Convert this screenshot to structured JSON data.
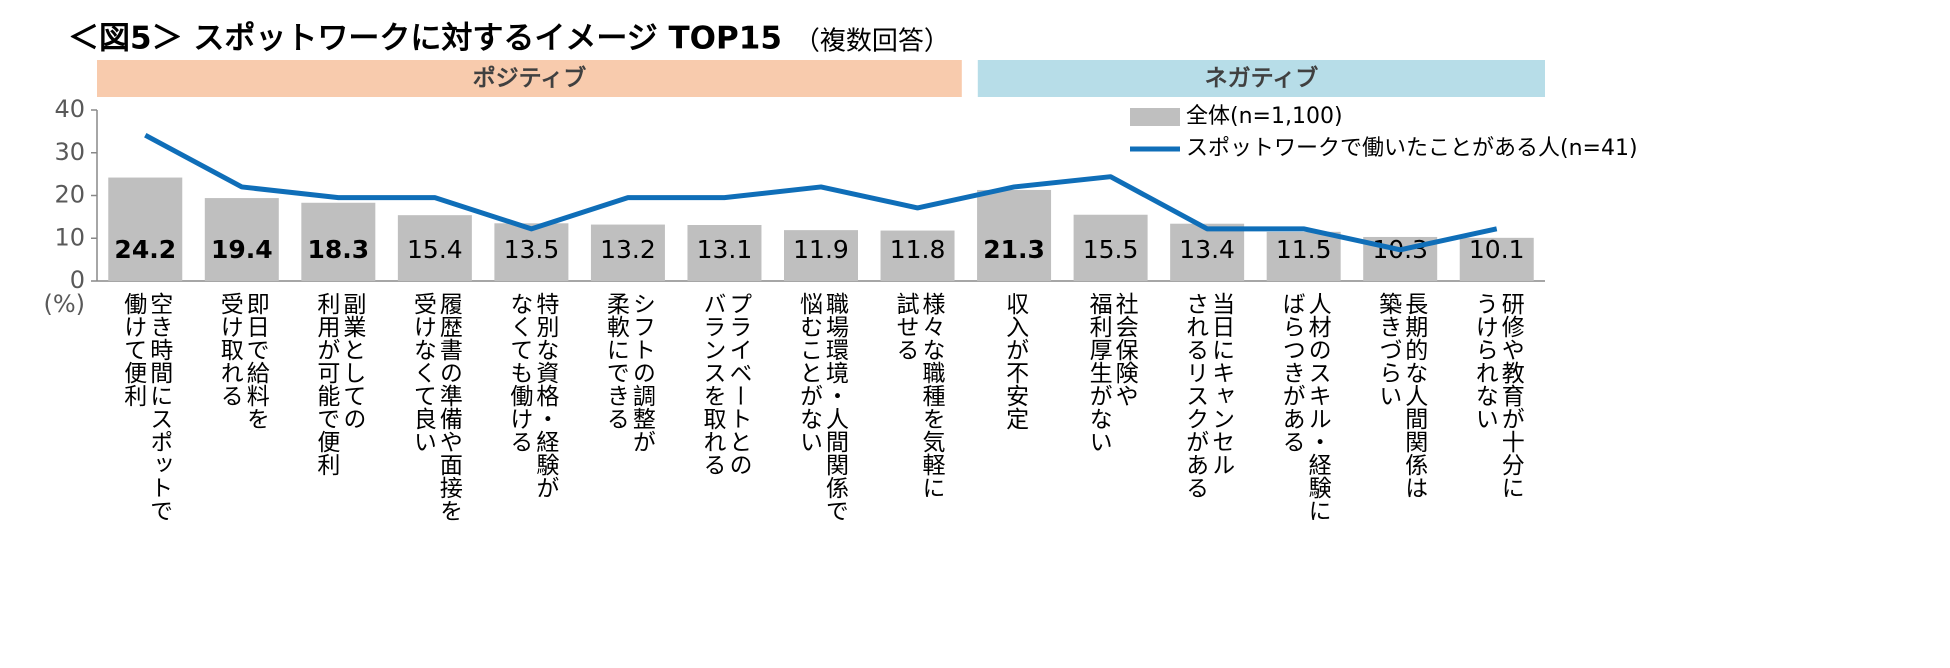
{
  "chart_data": {
    "type": "bar_line",
    "title": "＜図5＞ スポットワークに対するイメージ TOP15",
    "subtitle": "（複数回答）",
    "y_unit": "(%)",
    "categories": [
      [
        "空き時間にスポットで",
        "働けて便利"
      ],
      [
        "即日で給料を",
        "受け取れる"
      ],
      [
        "副業としての",
        "利用が可能で便利"
      ],
      [
        "履歴書の準備や面接を",
        "受けなくて良い"
      ],
      [
        "特別な資格・経験が",
        "なくても働ける"
      ],
      [
        "シフトの調整が",
        "柔軟にできる"
      ],
      [
        "プライベートとの",
        "バランスを取れる"
      ],
      [
        "職場環境・人間関係で",
        "悩むことがない"
      ],
      [
        "様々な職種を気軽に",
        "試せる"
      ],
      [
        "収入が不安定"
      ],
      [
        "社会保険や",
        "福利厚生がない"
      ],
      [
        "当日にキャンセル",
        "されるリスクがある"
      ],
      [
        "人材のスキル・経験に",
        "ばらつきがある"
      ],
      [
        "長期的な人間関係は",
        "築きづらい"
      ],
      [
        "研修や教育が十分に",
        "うけられない"
      ]
    ],
    "groups": [
      {
        "label": "ポジティブ",
        "start": 0,
        "end": 8,
        "color": "#f8cbad"
      },
      {
        "label": "ネガティブ",
        "start": 9,
        "end": 14,
        "color": "#b7dde8"
      }
    ],
    "series": [
      {
        "name": "全体(n=1,100)",
        "kind": "bar",
        "color": "#bfbfbf",
        "values": [
          24.2,
          19.4,
          18.3,
          15.4,
          13.5,
          13.2,
          13.1,
          11.9,
          11.8,
          21.3,
          15.5,
          13.4,
          11.5,
          10.3,
          10.1
        ],
        "value_bold": [
          true,
          true,
          true,
          false,
          false,
          false,
          false,
          false,
          false,
          true,
          false,
          false,
          false,
          false,
          false
        ]
      },
      {
        "name": "スポットワークで働いたことがある人(n=41)",
        "kind": "line",
        "color": "#0f6eb8",
        "values": [
          34.1,
          22.0,
          19.5,
          19.5,
          12.2,
          19.5,
          19.5,
          22.0,
          17.1,
          22.0,
          24.4,
          12.2,
          12.2,
          7.3,
          12.2
        ]
      }
    ],
    "ylim": [
      0,
      40
    ],
    "yticks": [
      0,
      10,
      20,
      30,
      40
    ],
    "legend": "upper right"
  }
}
